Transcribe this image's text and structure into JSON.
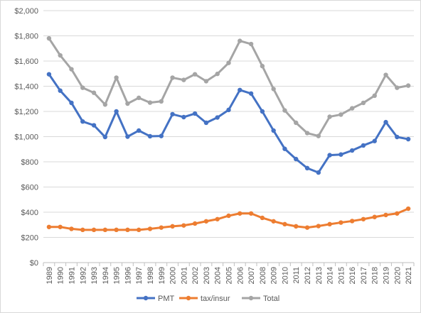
{
  "chart_data": {
    "type": "line",
    "title": "",
    "xlabel": "",
    "ylabel": "",
    "ylim": [
      0,
      2000
    ],
    "y_ticks": [
      0,
      200,
      400,
      600,
      800,
      1000,
      1200,
      1400,
      1600,
      1800,
      2000
    ],
    "y_tick_labels": [
      "$0",
      "$200",
      "$400",
      "$600",
      "$800",
      "$1,000",
      "$1,200",
      "$1,400",
      "$1,600",
      "$1,800",
      "$2,000"
    ],
    "grid": "horizontal",
    "legend_position": "bottom",
    "categories": [
      "1989",
      "1990",
      "1991",
      "1992",
      "1993",
      "1994",
      "1995",
      "1996",
      "1997",
      "1998",
      "1999",
      "2000",
      "2001",
      "2002",
      "2003",
      "2004",
      "2005",
      "2006",
      "2007",
      "2008",
      "2009",
      "2010",
      "2011",
      "2012",
      "2013",
      "2014",
      "2015",
      "2016",
      "2017",
      "2018",
      "2019",
      "2020",
      "2021"
    ],
    "series": [
      {
        "name": "PMT",
        "color": "#4472c4",
        "values": [
          1495,
          1365,
          1268,
          1120,
          1090,
          997,
          1200,
          1000,
          1048,
          1003,
          1005,
          1178,
          1155,
          1183,
          1110,
          1152,
          1212,
          1370,
          1342,
          1200,
          1048,
          903,
          822,
          750,
          715,
          853,
          858,
          890,
          930,
          965,
          1115,
          997,
          980
        ]
      },
      {
        "name": "tax/insur",
        "color": "#ed7d31",
        "values": [
          283,
          283,
          268,
          260,
          260,
          260,
          260,
          260,
          260,
          268,
          278,
          288,
          295,
          310,
          328,
          345,
          372,
          390,
          390,
          355,
          328,
          305,
          288,
          278,
          290,
          305,
          318,
          330,
          345,
          362,
          378,
          390,
          428
        ]
      },
      {
        "name": "Total",
        "color": "#a5a5a5",
        "values": [
          1780,
          1645,
          1535,
          1388,
          1348,
          1255,
          1468,
          1262,
          1308,
          1270,
          1280,
          1468,
          1450,
          1495,
          1440,
          1498,
          1585,
          1760,
          1735,
          1560,
          1378,
          1208,
          1110,
          1028,
          1005,
          1158,
          1175,
          1225,
          1268,
          1325,
          1490,
          1388,
          1405
        ]
      }
    ]
  }
}
